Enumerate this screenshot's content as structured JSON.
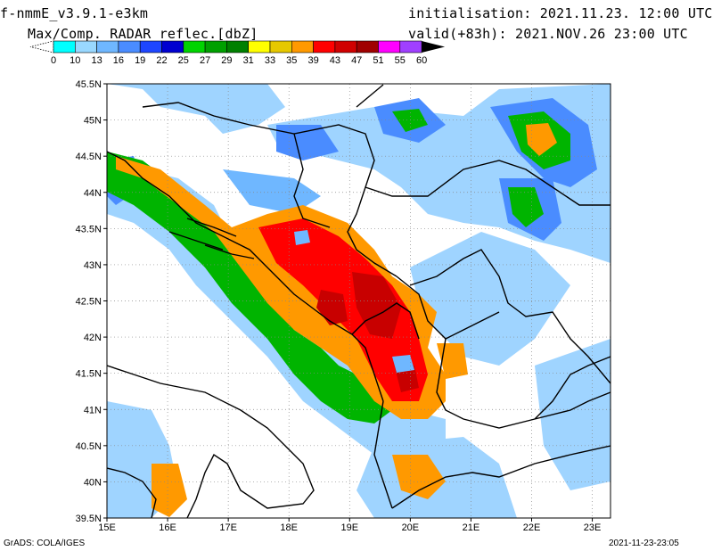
{
  "header": {
    "model": "f-nmmE_v3.9.1-e3km",
    "product": "Max/Comp. RADAR reflec.[dbZ]",
    "initialisation": "initialisation: 2021.11.23. 12:00 UTC",
    "valid": "valid(+83h): 2021.NOV.26 23:00 UTC"
  },
  "colorbar": {
    "labels": [
      "0",
      "10",
      "13",
      "16",
      "19",
      "22",
      "25",
      "27",
      "29",
      "31",
      "33",
      "35",
      "39",
      "43",
      "47",
      "51",
      "55",
      "60"
    ],
    "colors": [
      "#ffffff",
      "#00ffff",
      "#99d8ff",
      "#6fb7ff",
      "#4a8cff",
      "#1e46ff",
      "#0000d0",
      "#00d400",
      "#00a000",
      "#008000",
      "#ffff00",
      "#e6c800",
      "#ff9900",
      "#ff0000",
      "#d00000",
      "#a00000",
      "#ff00ff",
      "#a040ff",
      "#000000"
    ]
  },
  "map": {
    "lat_labels": [
      "45.5N",
      "45N",
      "44.5N",
      "44N",
      "43.5N",
      "43N",
      "42.5N",
      "42N",
      "41.5N",
      "41N",
      "40.5N",
      "40N",
      "39.5N"
    ],
    "lon_labels": [
      "15E",
      "16E",
      "17E",
      "18E",
      "19E",
      "20E",
      "21E",
      "22E",
      "23E"
    ],
    "lat_range": [
      39.5,
      45.5
    ],
    "lon_range": [
      15.0,
      23.3
    ],
    "grid": "dotted"
  },
  "footer": {
    "left": "GrADS: COLA/IGES",
    "right": "2021-11-23-23:05"
  }
}
